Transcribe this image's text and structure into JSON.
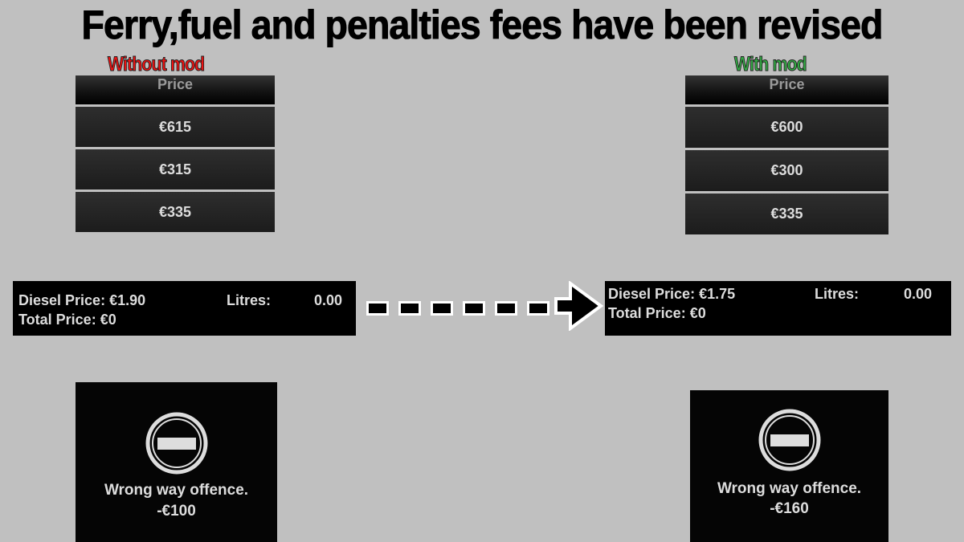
{
  "title": "Ferry,fuel and penalties fees have been revised",
  "colors": {
    "without": "#ee1111",
    "with": "#33aa44",
    "background": "#c0c0c0"
  },
  "without": {
    "label": "Without mod",
    "price_header": "Price",
    "prices": [
      "€615",
      "€315",
      "€335"
    ],
    "fuel": {
      "diesel": "Diesel Price: €1.90",
      "litres_label": "Litres:",
      "litres": "0.00",
      "total": "Total Price: €0"
    },
    "penalty": {
      "icon": "no-entry-icon",
      "text": "Wrong way offence.",
      "amount": "-€100"
    }
  },
  "with": {
    "label": "With mod",
    "price_header": "Price",
    "prices": [
      "€600",
      "€300",
      "€335"
    ],
    "fuel": {
      "diesel": "Diesel Price: €1.75",
      "litres_label": "Litres:",
      "litres": "0.00",
      "total": "Total Price: €0"
    },
    "penalty": {
      "icon": "no-entry-icon",
      "text": "Wrong way offence.",
      "amount": "-€160"
    }
  },
  "arrow_icon": "dashed-arrow-right-icon"
}
